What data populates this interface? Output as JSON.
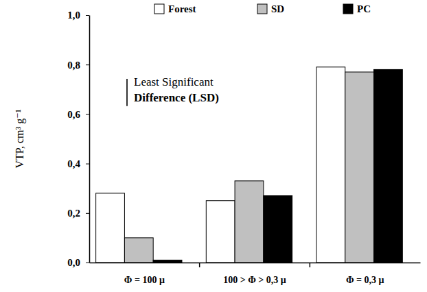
{
  "chart_data": {
    "type": "bar",
    "categories": [
      "Φ = 100 μ",
      "100 > Φ > 0,3 μ",
      "Φ = 0,3 μ"
    ],
    "series": [
      {
        "name": "Forest",
        "color": "#ffffff",
        "values": [
          0.28,
          0.25,
          0.79
        ]
      },
      {
        "name": "SD",
        "color": "#c0c0c0",
        "values": [
          0.1,
          0.33,
          0.77
        ]
      },
      {
        "name": "PC",
        "color": "#000000",
        "values": [
          0.01,
          0.27,
          0.78
        ]
      }
    ],
    "y_label": "VTP, cm³ g⁻¹",
    "ylim": [
      0,
      1
    ],
    "yticks": [
      {
        "value": 0,
        "label": "0,0"
      },
      {
        "value": 0.2,
        "label": "0,2"
      },
      {
        "value": 0.4,
        "label": "0,4"
      },
      {
        "value": 0.6,
        "label": "0,6"
      },
      {
        "value": 0.8,
        "label": "0,8"
      },
      {
        "value": 1,
        "label": "1,0"
      }
    ],
    "grid": false,
    "legend": "top",
    "lsd": {
      "text": [
        "Least Significant",
        "Difference (LSD)"
      ],
      "value": 0.11
    }
  }
}
